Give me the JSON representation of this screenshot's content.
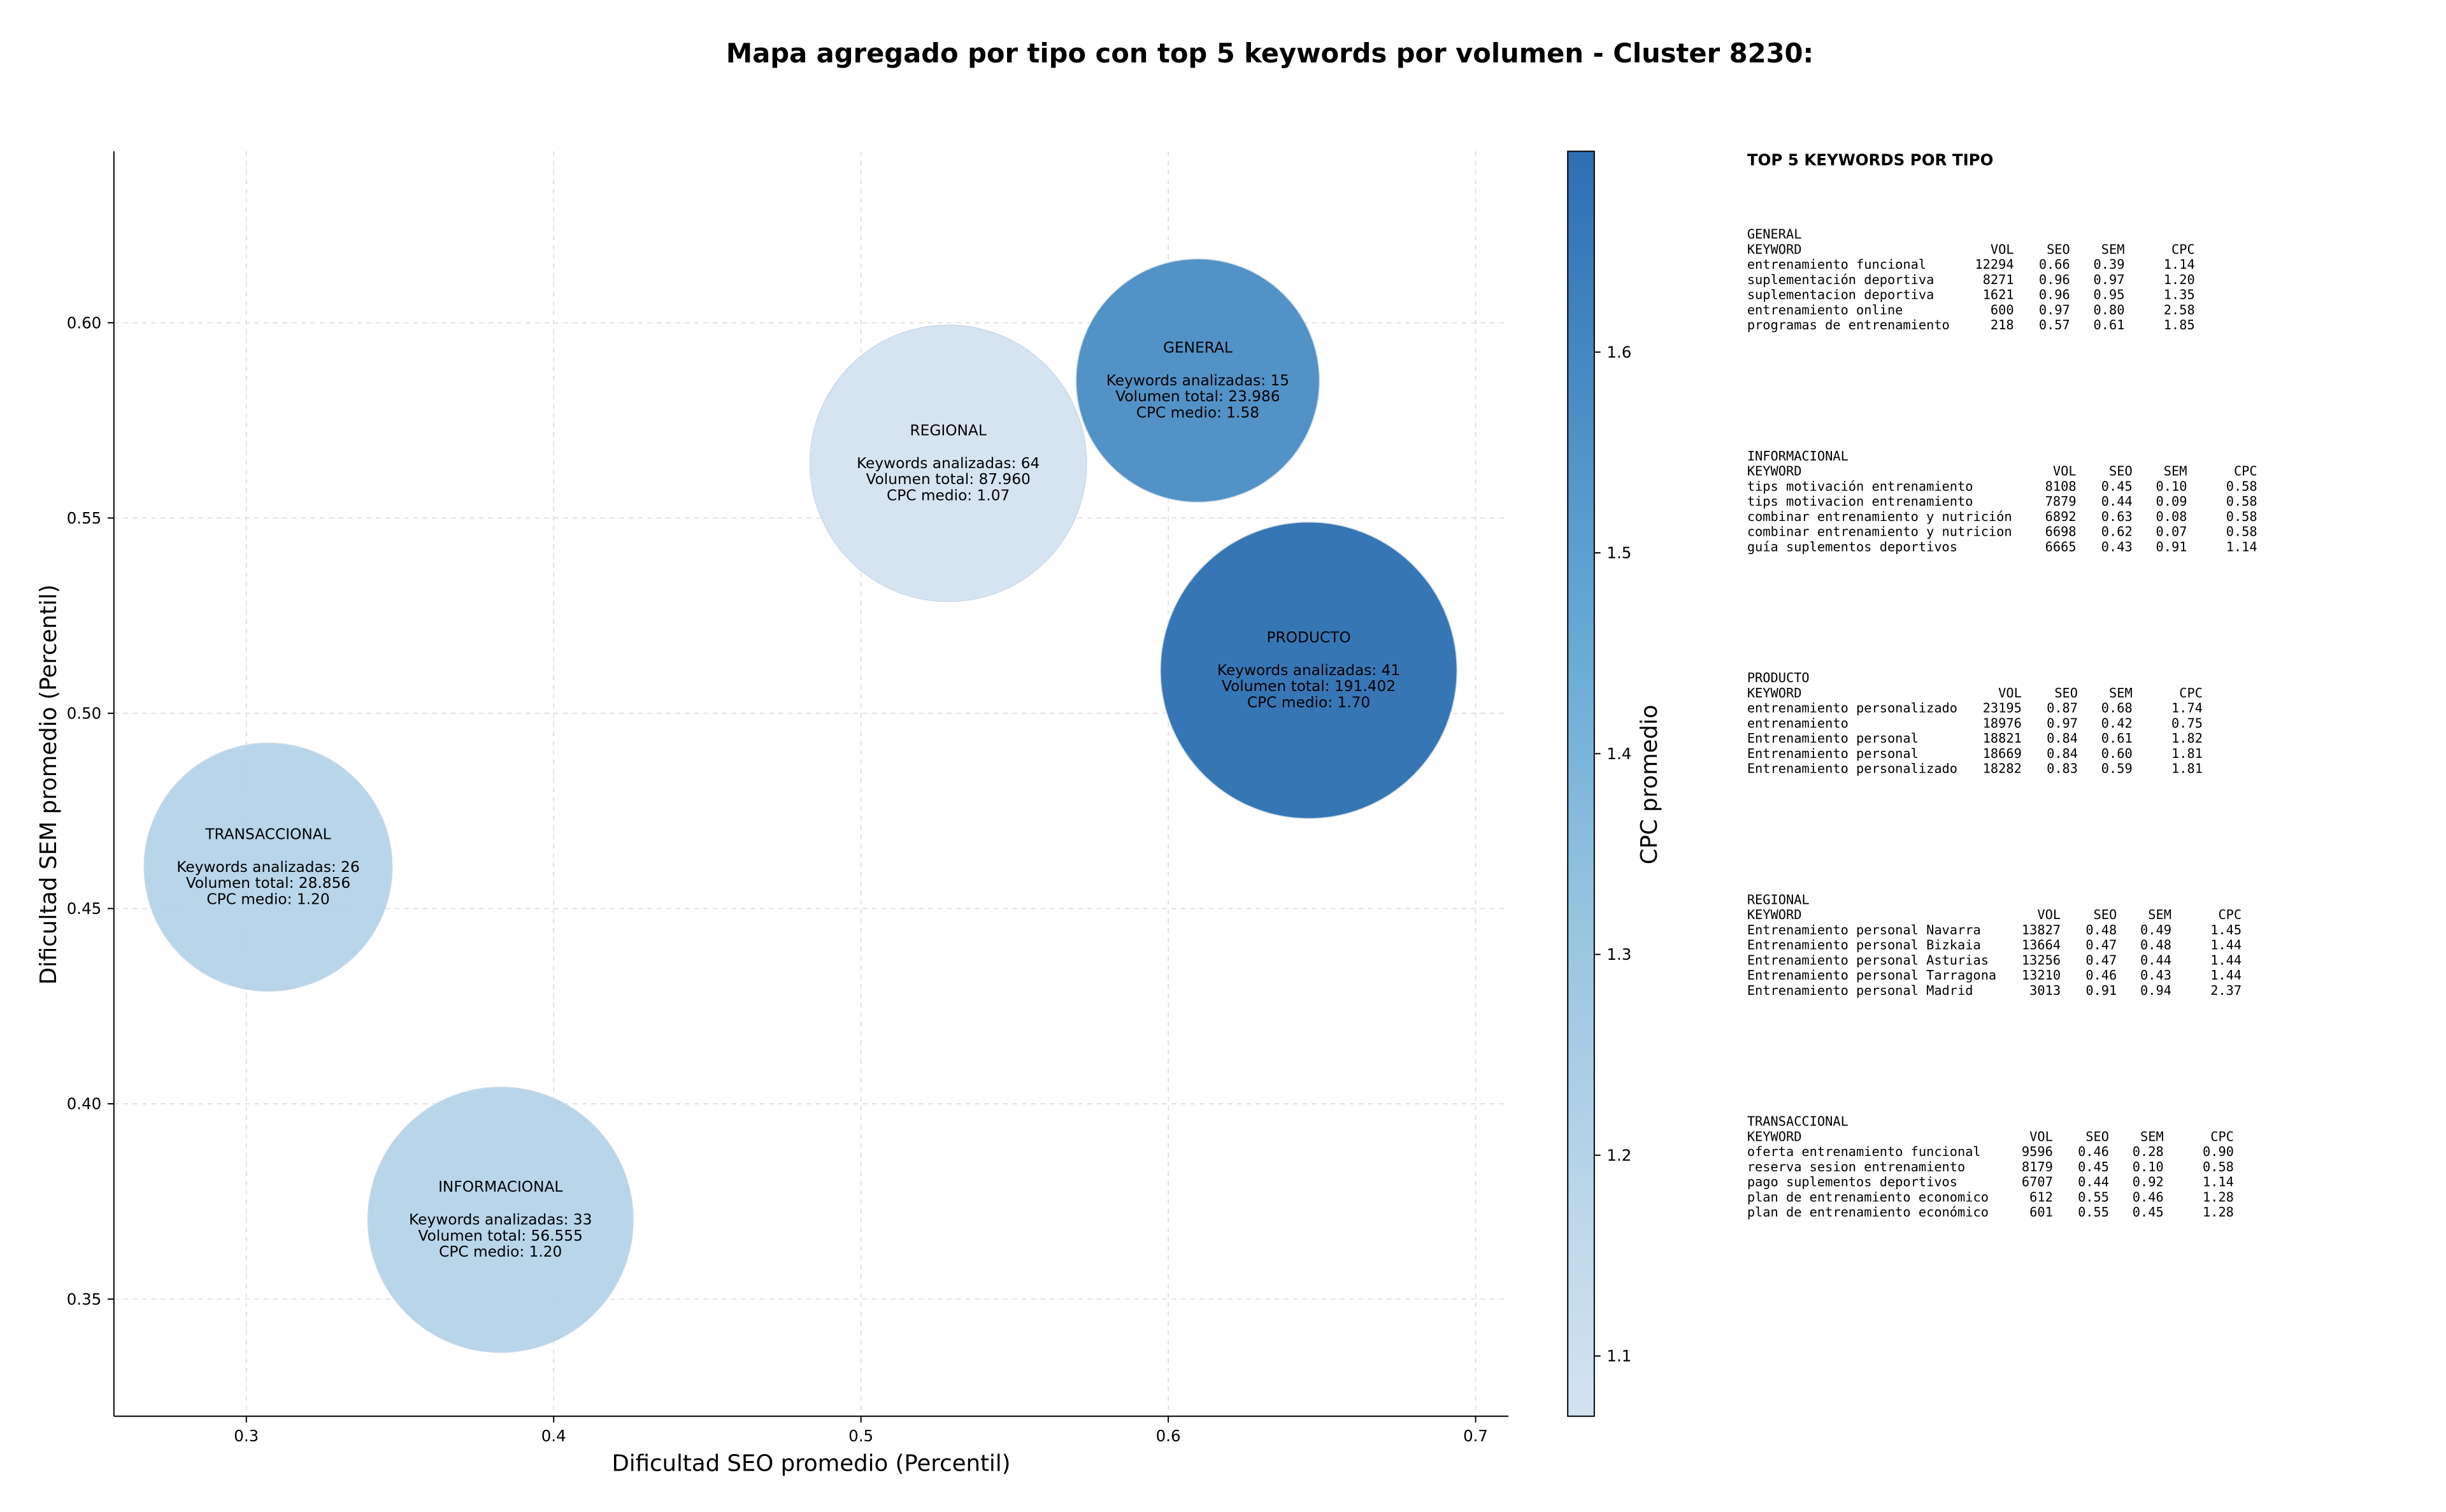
{
  "chart_data": {
    "type": "bubble",
    "title": "Mapa agregado por tipo con top 5 keywords por volumen - Cluster 8230:",
    "x_label": "Dificultad SEO promedio (Percentil)",
    "y_label": "Dificultad SEM promedio (Percentil)",
    "categories": [
      "GENERAL",
      "INFORMACIONAL",
      "PRODUCTO",
      "REGIONAL",
      "TRANSACCIONAL"
    ],
    "x": [
      0.6096,
      0.3827,
      0.6457,
      0.5284,
      0.3071
    ],
    "values": [
      0.5852,
      0.3703,
      0.511,
      0.564,
      0.4606
    ],
    "sizes": [
      23986,
      56555,
      191402,
      87960,
      28856
    ],
    "color_values": [
      1.58,
      1.2,
      1.7,
      1.07,
      1.2
    ],
    "annotations": [
      [
        "Keywords analizadas: 15",
        "Volumen total: 23.986",
        "CPC medio: 1.58"
      ],
      [
        "Keywords analizadas: 33",
        "Volumen total: 56.555",
        "CPC medio: 1.20"
      ],
      [
        "Keywords analizadas: 41",
        "Volumen total: 191.402",
        "CPC medio: 1.70"
      ],
      [
        "Keywords analizadas: 64",
        "Volumen total: 87.960",
        "CPC medio: 1.07"
      ],
      [
        "Keywords analizadas: 26",
        "Volumen total: 28.856",
        "CPC medio: 1.20"
      ]
    ],
    "xlim": [
      0.2569,
      0.7107
    ],
    "xticks": [
      0.3,
      0.4,
      0.5,
      0.6,
      0.7
    ],
    "ylim": [
      0.32,
      0.6439
    ],
    "yticks": [
      0.35,
      {
        "value": 0.4,
        "label": "0.40"
      },
      0.45,
      {
        "value": 0.5,
        "label": "0.50"
      },
      0.55,
      {
        "value": 0.6,
        "label": "0.60"
      }
    ],
    "grid": true,
    "colorbar": {
      "label": "CPC promedio",
      "lim": [
        1.07,
        1.7
      ],
      "ticks": [
        1.1,
        1.2,
        1.3,
        1.4,
        1.5,
        1.6
      ],
      "colormap": [
        "#d4e3f2",
        "#b6d4e9",
        "#95c4e0",
        "#6aabd6",
        "#4a8ec5",
        "#2d6fb2"
      ]
    }
  },
  "keywords_panel": {
    "title": "TOP 5 KEYWORDS POR TIPO",
    "columns": [
      "KEYWORD",
      "VOL",
      "SEO",
      "SEM",
      "CPC"
    ],
    "groups": [
      {
        "name": "GENERAL",
        "rows": [
          [
            "entrenamiento funcional",
            "12294",
            "0.66",
            "0.39",
            "1.14"
          ],
          [
            "suplementación deportiva",
            "8271",
            "0.96",
            "0.97",
            "1.20"
          ],
          [
            "suplementacion deportiva",
            "1621",
            "0.96",
            "0.95",
            "1.35"
          ],
          [
            "entrenamiento online",
            "600",
            "0.97",
            "0.80",
            "2.58"
          ],
          [
            "programas de entrenamiento",
            "218",
            "0.57",
            "0.61",
            "1.85"
          ]
        ]
      },
      {
        "name": "INFORMACIONAL",
        "rows": [
          [
            "tips motivación entrenamiento",
            "8108",
            "0.45",
            "0.10",
            "0.58"
          ],
          [
            "tips motivacion entrenamiento",
            "7879",
            "0.44",
            "0.09",
            "0.58"
          ],
          [
            "combinar entrenamiento y nutrición",
            "6892",
            "0.63",
            "0.08",
            "0.58"
          ],
          [
            "combinar entrenamiento y nutricion",
            "6698",
            "0.62",
            "0.07",
            "0.58"
          ],
          [
            "guía suplementos deportivos",
            "6665",
            "0.43",
            "0.91",
            "1.14"
          ]
        ]
      },
      {
        "name": "PRODUCTO",
        "rows": [
          [
            "entrenamiento personalizado",
            "23195",
            "0.87",
            "0.68",
            "1.74"
          ],
          [
            "entrenamiento",
            "18976",
            "0.97",
            "0.42",
            "0.75"
          ],
          [
            "Entrenamiento personal",
            "18821",
            "0.84",
            "0.61",
            "1.82"
          ],
          [
            "Entrenamiento personal",
            "18669",
            "0.84",
            "0.60",
            "1.81"
          ],
          [
            "Entrenamiento personalizado",
            "18282",
            "0.83",
            "0.59",
            "1.81"
          ]
        ]
      },
      {
        "name": "REGIONAL",
        "rows": [
          [
            "Entrenamiento personal Navarra",
            "13827",
            "0.48",
            "0.49",
            "1.45"
          ],
          [
            "Entrenamiento personal Bizkaia",
            "13664",
            "0.47",
            "0.48",
            "1.44"
          ],
          [
            "Entrenamiento personal Asturias",
            "13256",
            "0.47",
            "0.44",
            "1.44"
          ],
          [
            "Entrenamiento personal Tarragona",
            "13210",
            "0.46",
            "0.43",
            "1.44"
          ],
          [
            "Entrenamiento personal Madrid",
            "3013",
            "0.91",
            "0.94",
            "2.37"
          ]
        ]
      },
      {
        "name": "TRANSACCIONAL",
        "rows": [
          [
            "oferta entrenamiento funcional",
            "9596",
            "0.46",
            "0.28",
            "0.90"
          ],
          [
            "reserva sesion entrenamiento",
            "8179",
            "0.45",
            "0.10",
            "0.58"
          ],
          [
            "pago suplementos deportivos",
            "6707",
            "0.44",
            "0.92",
            "1.14"
          ],
          [
            "plan de entrenamiento economico",
            "612",
            "0.55",
            "0.46",
            "1.28"
          ],
          [
            "plan de entrenamiento económico",
            "601",
            "0.55",
            "0.45",
            "1.28"
          ]
        ]
      }
    ]
  }
}
